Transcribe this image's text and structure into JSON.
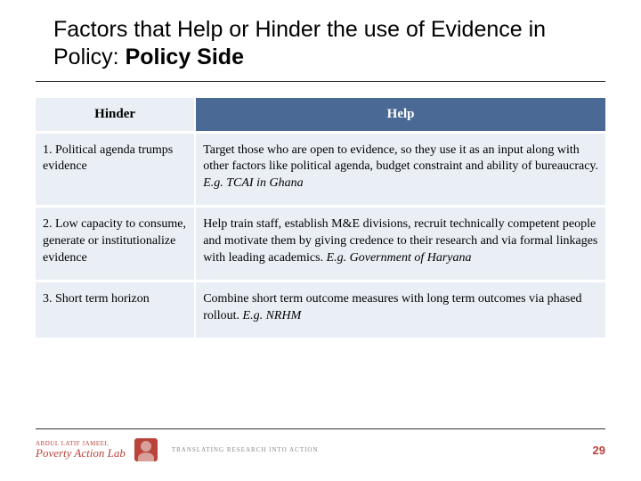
{
  "title": {
    "prefix": "Factors that Help or Hinder the use of Evidence in Policy: ",
    "bold": "Policy Side"
  },
  "table": {
    "headers": {
      "hinder": "Hinder",
      "help": "Help"
    },
    "header_bg_hinder": "#eaeff6",
    "header_bg_help": "#4a6a95",
    "row_bg": "#eaeff6",
    "rows": [
      {
        "hinder": "1. Political agenda trumps evidence",
        "help_plain": "Target those who are open to evidence, so they use it as an input along with other factors like political agenda, budget constraint and ability of bureaucracy. ",
        "help_em": "E.g. TCAI in Ghana"
      },
      {
        "hinder": "2. Low capacity to consume, generate or institutionalize evidence",
        "help_plain": "Help train staff, establish M&E divisions, recruit technically competent people and motivate them by giving credence to their research and via formal linkages with leading academics. ",
        "help_em": "E.g. Government of Haryana"
      },
      {
        "hinder": "3. Short term horizon",
        "help_plain": "Combine short term outcome measures with long term outcomes via phased rollout. ",
        "help_em": "E.g. NRHM"
      }
    ]
  },
  "footer": {
    "logo_line1": "ABDUL LATIF JAMEEL",
    "logo_line2": "Poverty Action Lab",
    "tagline": "TRANSLATING RESEARCH INTO ACTION",
    "page": "29",
    "accent_color": "#b8443a"
  }
}
